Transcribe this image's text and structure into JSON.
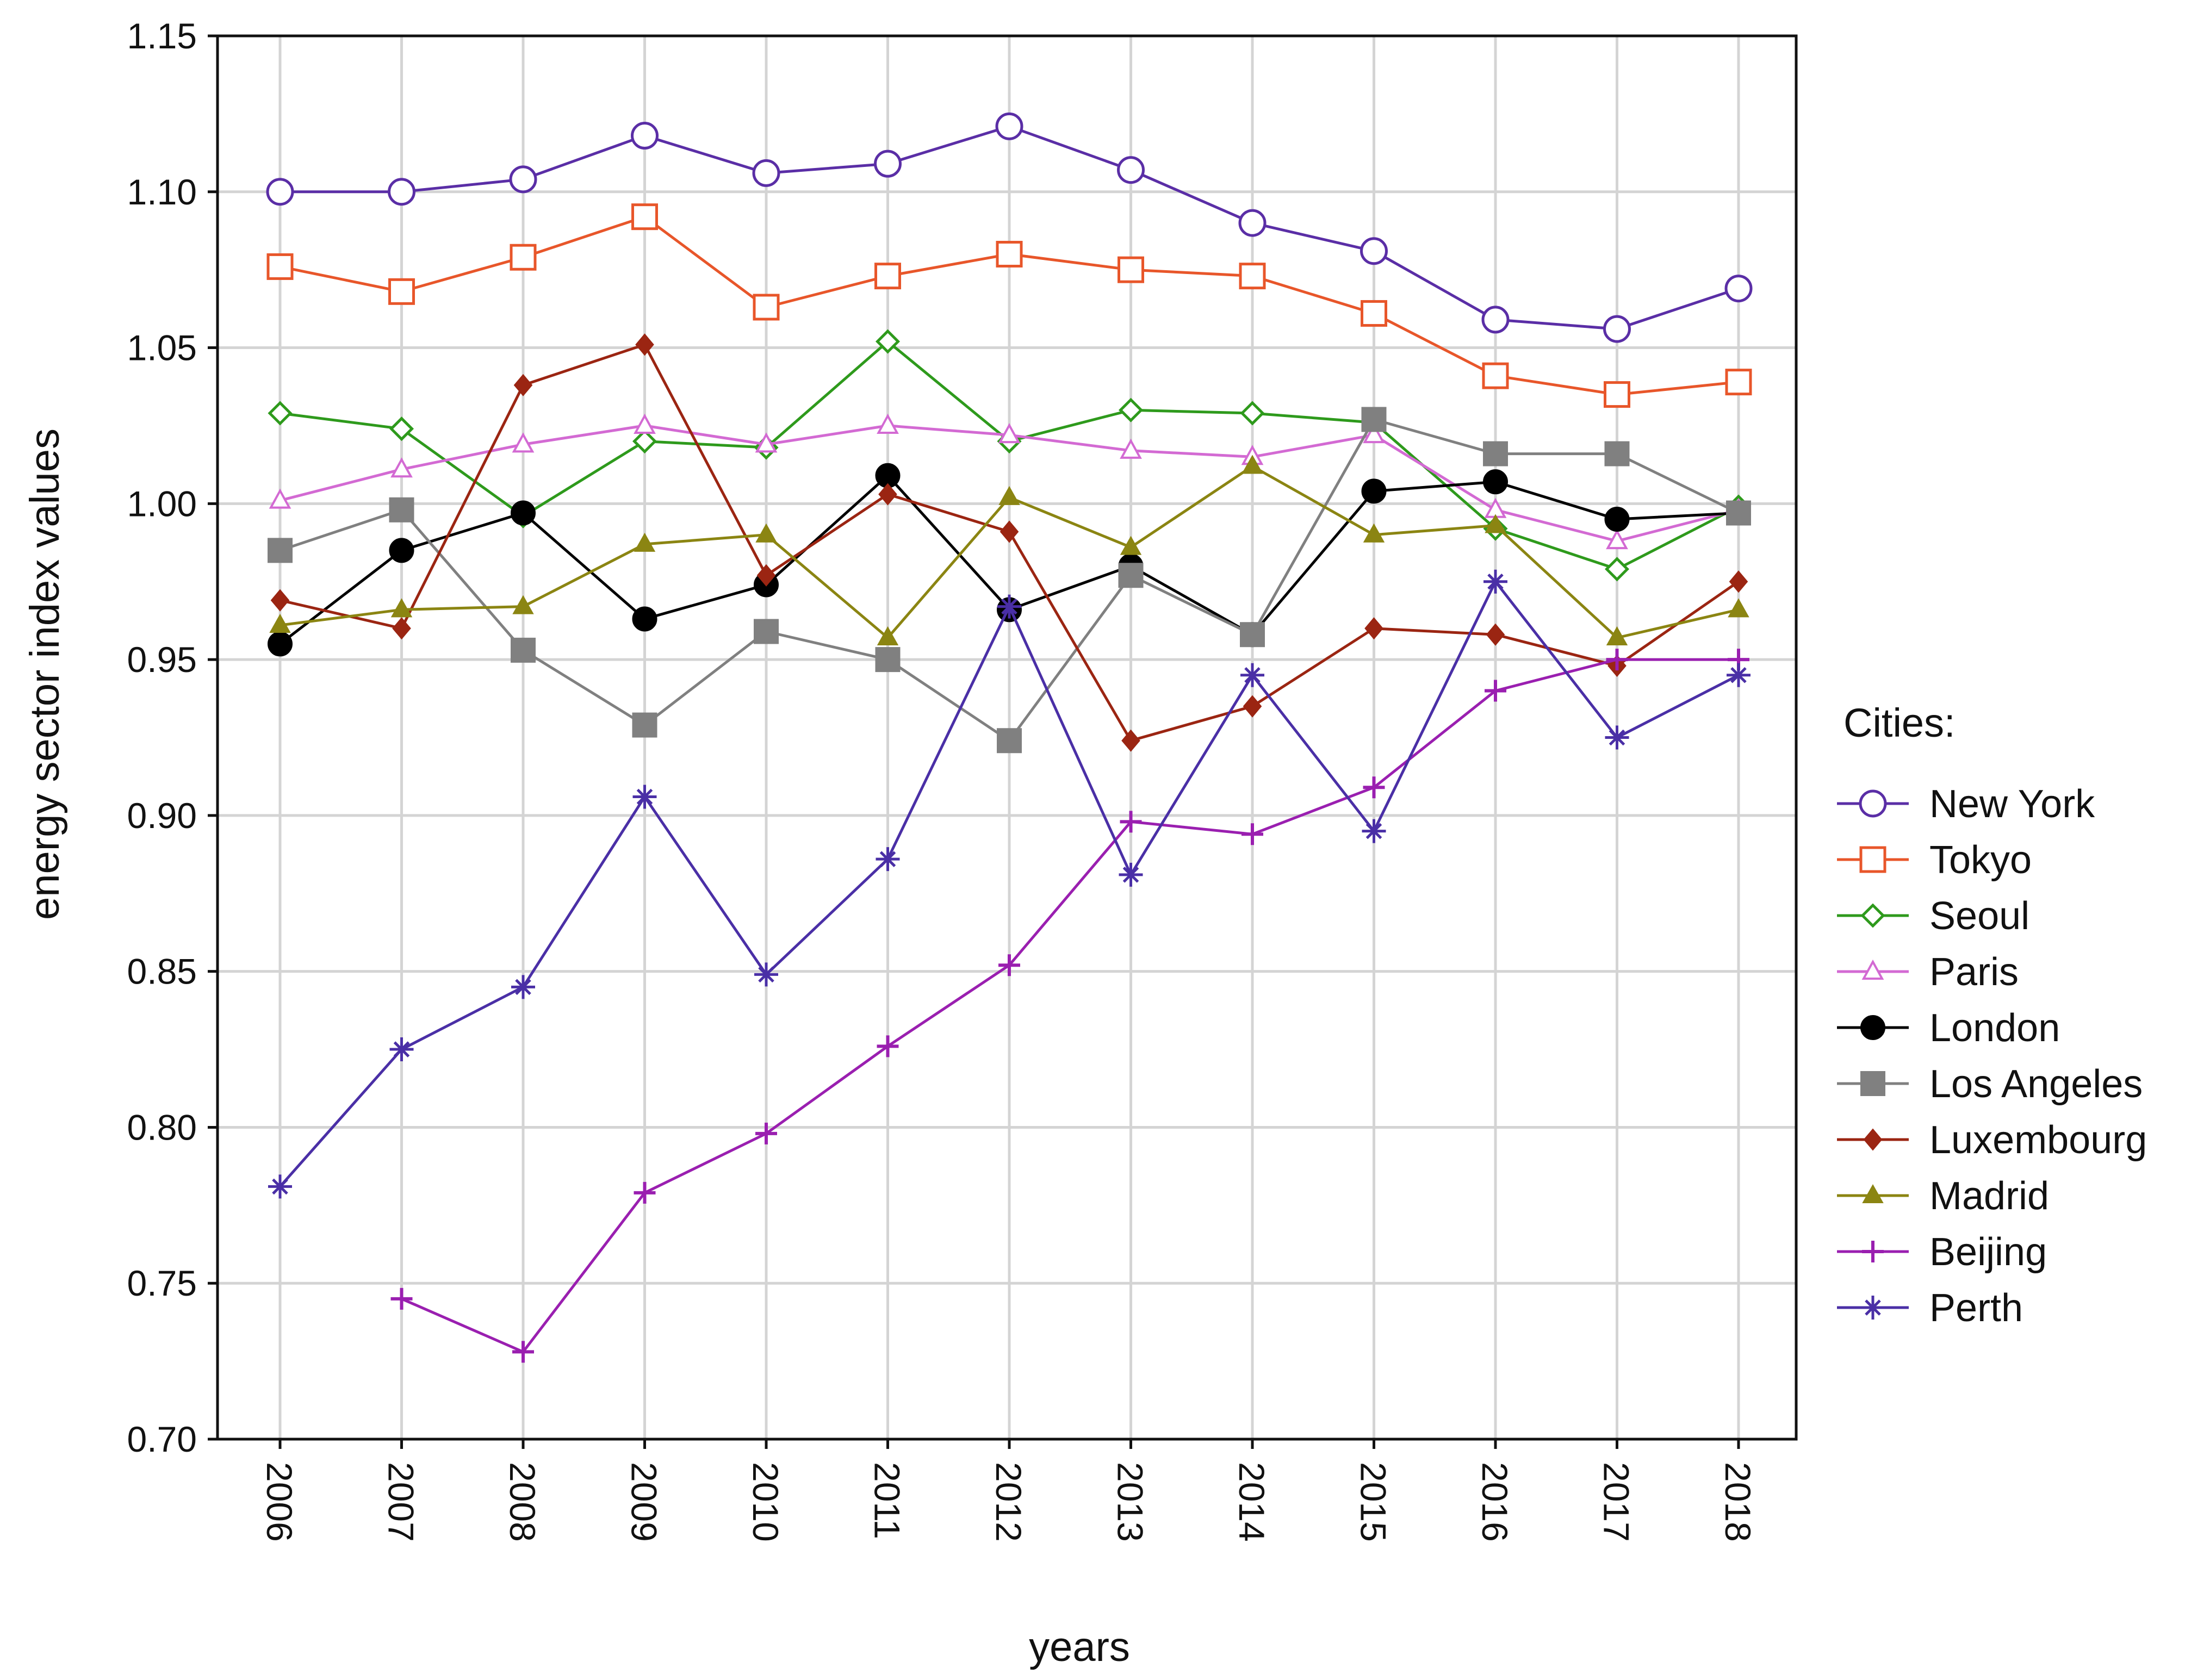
{
  "chart_data": {
    "type": "line",
    "title": "",
    "xlabel": "years",
    "ylabel": "energy sector index values",
    "ylim": [
      0.7,
      1.15
    ],
    "yticks": [
      "0.70",
      "0.75",
      "0.80",
      "0.85",
      "0.90",
      "0.95",
      "1.00",
      "1.05",
      "1.10",
      "1.15"
    ],
    "x": [
      "2006",
      "2007",
      "2008",
      "2009",
      "2010",
      "2011",
      "2012",
      "2013",
      "2014",
      "2015",
      "2016",
      "2017",
      "2018"
    ],
    "grid": true,
    "legend": {
      "title": "Cities:",
      "position": "right"
    },
    "series": [
      {
        "name": "New York",
        "color": "#5a2ea6",
        "marker": "circle-open",
        "values": [
          1.1,
          1.1,
          1.104,
          1.118,
          1.106,
          1.109,
          1.121,
          1.107,
          1.09,
          1.081,
          1.059,
          1.056,
          1.069
        ]
      },
      {
        "name": "Tokyo",
        "color": "#e8562a",
        "marker": "square-open",
        "values": [
          1.076,
          1.068,
          1.079,
          1.092,
          1.063,
          1.073,
          1.08,
          1.075,
          1.073,
          1.061,
          1.041,
          1.035,
          1.039
        ]
      },
      {
        "name": "Seoul",
        "color": "#2e9a1c",
        "marker": "diamond-open",
        "values": [
          1.029,
          1.024,
          0.996,
          1.02,
          1.018,
          1.052,
          1.02,
          1.03,
          1.029,
          1.026,
          0.992,
          0.979,
          0.999
        ]
      },
      {
        "name": "Paris",
        "color": "#d36ad3",
        "marker": "triangle-open",
        "values": [
          1.001,
          1.011,
          1.019,
          1.025,
          1.019,
          1.025,
          1.022,
          1.017,
          1.015,
          1.022,
          0.998,
          0.988,
          0.998
        ]
      },
      {
        "name": "London",
        "color": "#000000",
        "marker": "circle",
        "values": [
          0.955,
          0.985,
          0.997,
          0.963,
          0.974,
          1.009,
          0.966,
          0.98,
          0.958,
          1.004,
          1.007,
          0.995,
          0.997
        ]
      },
      {
        "name": "Los Angeles",
        "color": "#808080",
        "marker": "square",
        "values": [
          0.985,
          0.998,
          0.953,
          0.929,
          0.959,
          0.95,
          0.924,
          0.977,
          0.958,
          1.027,
          1.016,
          1.016,
          0.997
        ]
      },
      {
        "name": "Luxembourg",
        "color": "#9b2512",
        "marker": "diamond",
        "values": [
          0.969,
          0.96,
          1.038,
          1.051,
          0.977,
          1.003,
          0.991,
          0.924,
          0.935,
          0.96,
          0.958,
          0.948,
          0.975
        ]
      },
      {
        "name": "Madrid",
        "color": "#8b8512",
        "marker": "triangle",
        "values": [
          0.961,
          0.966,
          0.967,
          0.987,
          0.99,
          0.957,
          1.002,
          0.986,
          1.012,
          0.99,
          0.993,
          0.957,
          0.966
        ]
      },
      {
        "name": "Beijing",
        "color": "#9a1fb0",
        "marker": "plus",
        "values": [
          null,
          0.745,
          0.728,
          0.779,
          0.798,
          0.826,
          0.852,
          0.898,
          0.894,
          0.909,
          0.94,
          0.95,
          0.95
        ]
      },
      {
        "name": "Perth",
        "color": "#4a2fa6",
        "marker": "star",
        "values": [
          0.781,
          0.825,
          0.845,
          0.906,
          0.849,
          0.886,
          0.967,
          0.881,
          0.945,
          0.895,
          0.975,
          0.925,
          0.945
        ]
      }
    ]
  }
}
